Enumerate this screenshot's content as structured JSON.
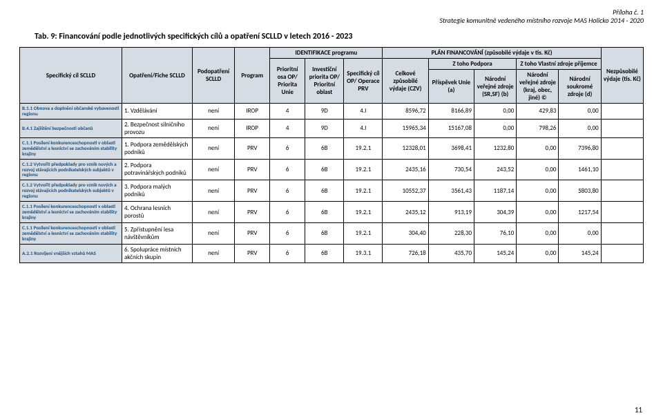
{
  "header": {
    "appendix": "Příloha č. 1",
    "strategy": "Strategie komunitně vedeného místního rozvoje MAS Holicko 2014 - 2020"
  },
  "title": "Tab. 9: Financování podle jednotlivých specifických cílů a opatření SCLLD v letech 2016 - 2023",
  "columns": {
    "c0": "Specifický cíl SCLLD",
    "c1": "Opatření/Fiche SCLLD",
    "c2": "Podopatření SCLLD",
    "c3": "Program",
    "ident": "IDENTIFIKACE programu",
    "c4": "Prioritní osa OP/ Priorita Unie",
    "c5": "Investiční priorita OP/ Prioritní oblast",
    "c6": "Specifický cíl OP/ Operace PRV",
    "plan": "PLÁN FINANCOVÁNÍ (způsobilé výdaje v tis. Kč)",
    "c7": "Celkové způsobilé výdaje (CZV)",
    "podpora": "Z toho Podpora",
    "c8": "Příspěvek Unie (a)",
    "c9": "Národní veřejné zdroje (SR,SF) (b)",
    "vlastni": "Z toho Vlastní zdroje příjemce",
    "c10": "Národní veřejné zdroje (kraj, obec, jiné) ©",
    "c11": "Národní soukromé zdroje (d)",
    "c12": "Nezpůsobilé výdaje (tis. Kč)"
  },
  "rows": [
    {
      "spec": "B.1.1 Obnova a doplnění občanské vybavenosti regionu",
      "opat": "1. Vzdělávání",
      "podop": "není",
      "prog": "IROP",
      "osa": "4",
      "inv": "9D",
      "sc": "4.I",
      "czv": "8596,72",
      "unie": "8166,89",
      "srsf": "0,00",
      "kraj": "429,83",
      "soukr": "0,00",
      "nezp": ""
    },
    {
      "spec": "B.4.1 Zajištění bezpečnosti občanů",
      "opat": "2. Bezpečnost silničního provozu",
      "podop": "není",
      "prog": "IROP",
      "osa": "4",
      "inv": "9D",
      "sc": "4.I",
      "czv": "15965,34",
      "unie": "15167,08",
      "srsf": "0,00",
      "kraj": "798,26",
      "soukr": "0,00",
      "nezp": ""
    },
    {
      "spec": "C.1.1 Posílení konkurenceschopnosti v oblasti zemědělství a lesnictví se zachováním stability krajiny",
      "opat": "1. Podpora zemědělských podniků",
      "podop": "není",
      "prog": "PRV",
      "osa": "6",
      "inv": "6B",
      "sc": "19.2.1",
      "czv": "12328,01",
      "unie": "3698,41",
      "srsf": "1232,80",
      "kraj": "0,00",
      "soukr": "7396,80",
      "nezp": ""
    },
    {
      "spec": "C.1.2 Vytvořit předpoklady pro vznik nových a rozvoj stávajících podnikatelských subjektů v regionu",
      "opat": "2. Podpora potravinářských podniků",
      "podop": "není",
      "prog": "PRV",
      "osa": "6",
      "inv": "6B",
      "sc": "19.2.1",
      "czv": "2435,16",
      "unie": "730,54",
      "srsf": "243,52",
      "kraj": "0,00",
      "soukr": "1461,10",
      "nezp": ""
    },
    {
      "spec": "C.1.2 Vytvořit předpoklady pro vznik nových a rozvoj stávajících podnikatelských subjektů v regionu",
      "opat": "3. Podpora malých podniků",
      "podop": "není",
      "prog": "PRV",
      "osa": "6",
      "inv": "6B",
      "sc": "19.2.1",
      "czv": "10552,37",
      "unie": "3561,43",
      "srsf": "1187,14",
      "kraj": "0,00",
      "soukr": "5803,80",
      "nezp": ""
    },
    {
      "spec": "C.1.1 Posílení konkurenceschopnosti v oblasti zemědělství a lesnictví se zachováním stability krajiny",
      "opat": "4. Ochrana lesních porostů",
      "podop": "není",
      "prog": "PRV",
      "osa": "6",
      "inv": "6B",
      "sc": "19.2.1",
      "czv": "2435,12",
      "unie": "913,19",
      "srsf": "304,39",
      "kraj": "0,00",
      "soukr": "1217,54",
      "nezp": ""
    },
    {
      "spec": "C.1.1 Posílení konkurenceschopnosti v oblasti zemědělství a lesnictví se zachováním stability krajiny",
      "opat": "5. Zpřístupnění lesa návštěvníkům",
      "podop": "není",
      "prog": "PRV",
      "osa": "6",
      "inv": "6B",
      "sc": "19.2.1",
      "czv": "304,40",
      "unie": "228,30",
      "srsf": "76,10",
      "kraj": "0,00",
      "soukr": "0,00",
      "nezp": ""
    },
    {
      "spec": "A.2.1 Rozvíjení vnějších vztahů MAS",
      "opat": "6. Spolupráce místních akčních skupin",
      "podop": "není",
      "prog": "PRV",
      "osa": "6",
      "inv": "6B",
      "sc": "19.3.1",
      "czv": "726,18",
      "unie": "435,70",
      "srsf": "145,24",
      "kraj": "0,00",
      "soukr": "145,24",
      "nezp": ""
    }
  ],
  "footer": {
    "page": "11"
  }
}
